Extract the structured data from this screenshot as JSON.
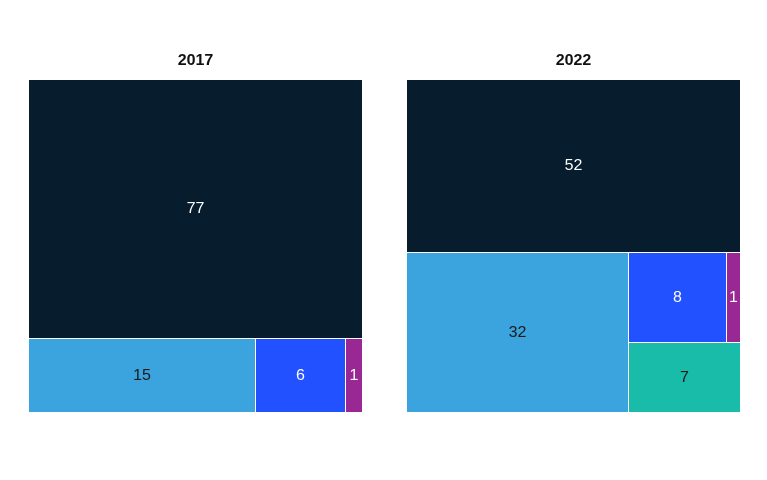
{
  "chart_data": [
    {
      "type": "treemap",
      "title": "2017",
      "values": [
        77,
        15,
        6,
        1
      ],
      "colors": [
        "#071d2d",
        "#3ba3dd",
        "#2251ff",
        "#9a2894"
      ],
      "label_colors": [
        "#ffffff",
        "#1a1a1a",
        "#ffffff",
        "#ffffff"
      ]
    },
    {
      "type": "treemap",
      "title": "2022",
      "values": [
        52,
        32,
        8,
        1,
        7
      ],
      "colors": [
        "#071d2d",
        "#3ba3dd",
        "#2251ff",
        "#9a2894",
        "#18bca8"
      ],
      "label_colors": [
        "#ffffff",
        "#1a1a1a",
        "#ffffff",
        "#ffffff",
        "#1a1a1a"
      ]
    }
  ]
}
